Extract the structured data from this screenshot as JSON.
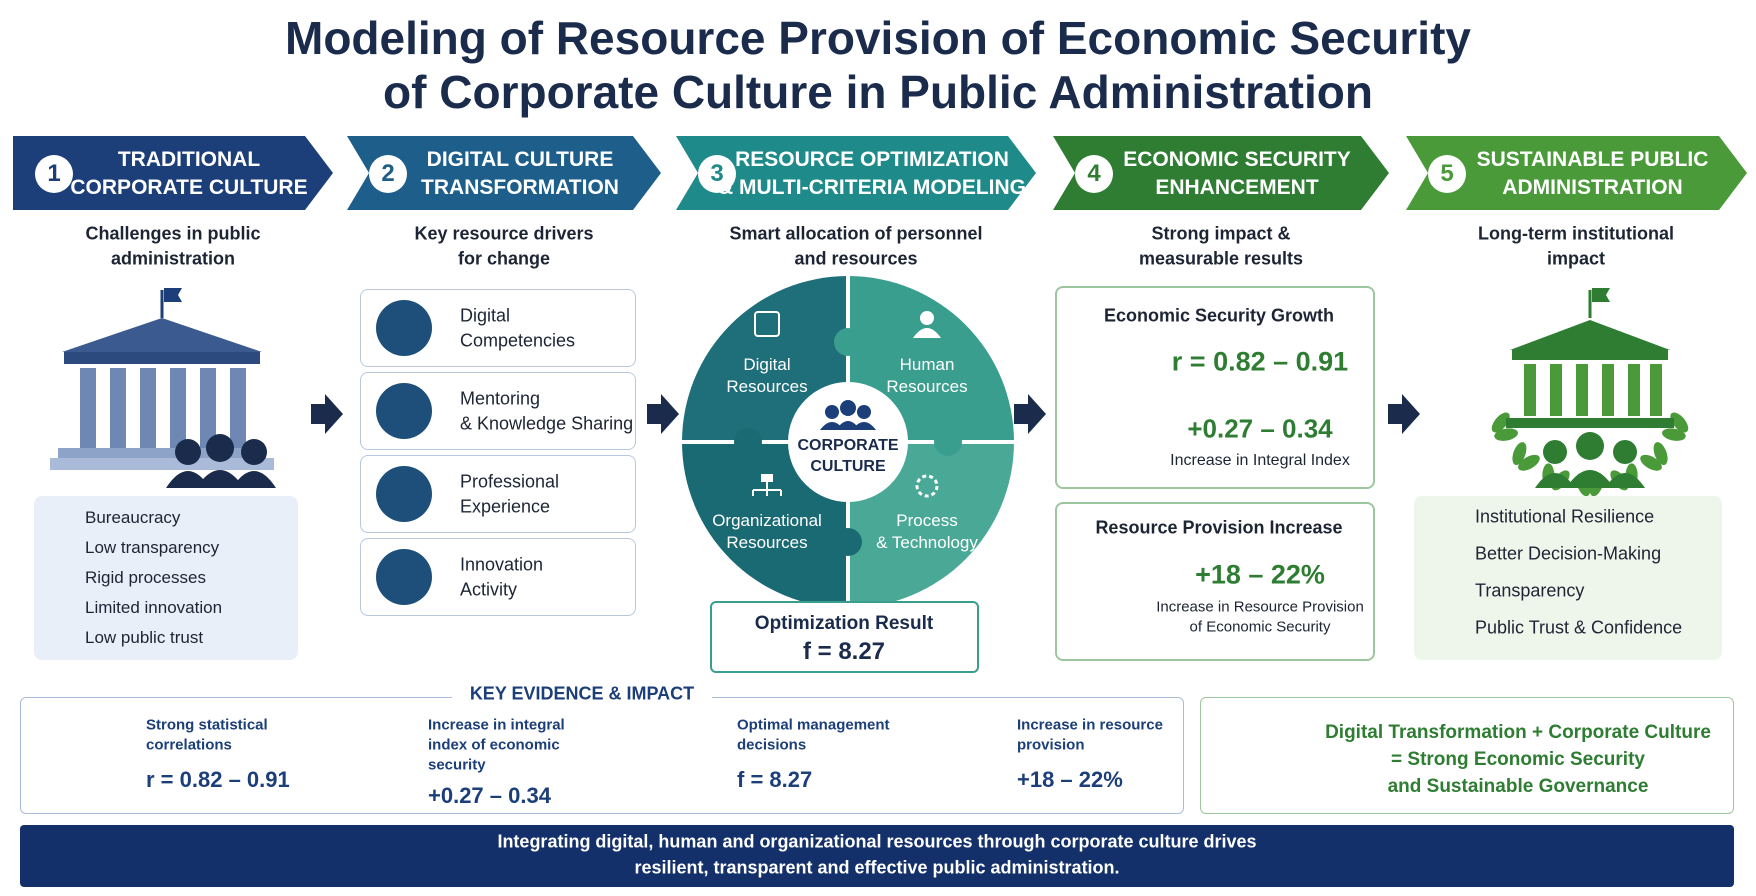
{
  "title": {
    "line1": "Modeling of Resource Provision of Economic Security",
    "line2": "of Corporate Culture in Public Administration"
  },
  "stages": [
    {
      "number": 1,
      "heading": {
        "line1": "TRADITIONAL",
        "line2": "CORPORATE CULTURE"
      },
      "subtitle": {
        "line1": "Challenges in public",
        "line2": "administration"
      },
      "challenges": [
        "Bureaucracy",
        "Low transparency",
        "Rigid processes",
        "Limited innovation",
        "Low public trust"
      ]
    },
    {
      "number": 2,
      "heading": {
        "line1": "DIGITAL CULTURE",
        "line2": "TRANSFORMATION"
      },
      "subtitle": {
        "line1": "Key resource drivers",
        "line2": "for change"
      },
      "drivers": [
        {
          "line1": "Digital",
          "line2": "Competencies"
        },
        {
          "line1": "Mentoring",
          "line2": "& Knowledge Sharing"
        },
        {
          "line1": "Professional",
          "line2": "Experience"
        },
        {
          "line1": "Innovation",
          "line2": "Activity"
        }
      ]
    },
    {
      "number": 3,
      "heading": {
        "line1": "RESOURCE OPTIMIZATION",
        "line2": "& MULTI-CRITERIA MODELING"
      },
      "subtitle": {
        "line1": "Smart allocation of personnel",
        "line2": "and resources"
      },
      "pieces": [
        {
          "line1": "Digital",
          "line2": "Resources"
        },
        {
          "line1": "Human",
          "line2": "Resources"
        },
        {
          "line1": "Organizational",
          "line2": "Resources"
        },
        {
          "line1": "Process",
          "line2": "& Technology"
        }
      ],
      "center": {
        "line1": "CORPORATE",
        "line2": "CULTURE"
      },
      "result": {
        "label": "Optimization Result",
        "value": "f = 8.27"
      }
    },
    {
      "number": 4,
      "heading": {
        "line1": "ECONOMIC SECURITY",
        "line2": "ENHANCEMENT"
      },
      "subtitle": {
        "line1": "Strong impact &",
        "line2": "measurable results"
      },
      "cards": [
        {
          "title": "Economic Security Growth",
          "value": "r = 0.82 – 0.91",
          "value2": "+0.27 – 0.34",
          "caption": "Increase in Integral Index"
        },
        {
          "title": "Resource Provision Increase",
          "value": "+18 – 22%",
          "caption": {
            "line1": "Increase in Resource Provision",
            "line2": "of Economic Security"
          }
        }
      ]
    },
    {
      "number": 5,
      "heading": {
        "line1": "SUSTAINABLE PUBLIC",
        "line2": "ADMINISTRATION"
      },
      "subtitle": {
        "line1": "Long-term institutional",
        "line2": "impact"
      },
      "outcomes": [
        "Institutional Resilience",
        "Better Decision-Making",
        "Transparency",
        "Public Trust & Confidence"
      ]
    }
  ],
  "evidence": {
    "title": "KEY EVIDENCE & IMPACT",
    "items": [
      {
        "label": {
          "line1": "Strong statistical",
          "line2": "correlations"
        },
        "value": "r = 0.82 – 0.91"
      },
      {
        "label": {
          "line1": "Increase in integral",
          "line2": "index of economic",
          "line3": "security"
        },
        "value": "+0.27 – 0.34"
      },
      {
        "label": {
          "line1": "Optimal management",
          "line2": "decisions"
        },
        "value": "f = 8.27"
      },
      {
        "label": {
          "line1": "Increase in resource",
          "line2": "provision"
        },
        "value": "+18 – 22%"
      }
    ]
  },
  "summary": {
    "line1": "Digital Transformation + Corporate Culture",
    "line2": "= Strong Economic Security",
    "line3": "and Sustainable Governance"
  },
  "footer": {
    "line1": "Integrating digital, human and organizational resources through corporate culture drives",
    "line2": "resilient, transparent and effective public administration."
  }
}
